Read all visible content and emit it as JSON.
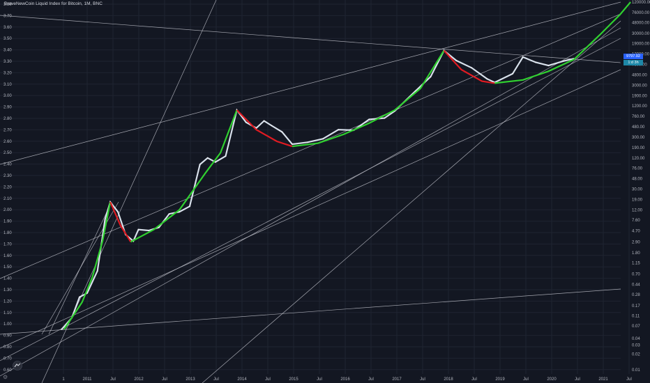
{
  "title": "BraveNewCoin Liquid Index for Bitcoin, 1M, BNC",
  "colors": {
    "background": "#131722",
    "grid": "#1f2431",
    "axis_text": "#b2b5be",
    "trend_line": "#c9cbd3",
    "price_white": "#f4f6f9",
    "price_blue": "#3d8bd4",
    "bull_green": "#30d030",
    "bear_red": "#e01b22",
    "tag_blue": "#2962ff",
    "tag_teal": "#1e88a8"
  },
  "price_tags": [
    "9797.92",
    "1:d 3h"
  ],
  "settings_icon": "gear-icon",
  "logo_icon": "tradingview-logo-icon",
  "chart_data": {
    "type": "line",
    "title": "BraveNewCoin Liquid Index for Bitcoin, 1M, BNC",
    "x_ticks": [
      "1",
      "2011",
      "Jul",
      "2012",
      "Jul",
      "2013",
      "Jul",
      "2014",
      "Jul",
      "2015",
      "Jul",
      "2016",
      "Jul",
      "2017",
      "Jul",
      "2018",
      "Jul",
      "2019",
      "Jul",
      "2020",
      "Jul",
      "2021",
      "Jul"
    ],
    "left_axis_ticks": [
      "3.80",
      "3.70",
      "3.60",
      "3.50",
      "3.40",
      "3.30",
      "3.20",
      "3.10",
      "3.00",
      "2.90",
      "2.80",
      "2.70",
      "2.60",
      "2.50",
      "2.40",
      "2.30",
      "2.20",
      "2.10",
      "2.00",
      "1.90",
      "1.80",
      "1.70",
      "1.60",
      "1.50",
      "1.40",
      "1.30",
      "1.20",
      "1.10",
      "1.00",
      "0.90",
      "0.80",
      "0.70",
      "0.60"
    ],
    "right_axis_ticks": [
      "120000.00",
      "76000.00",
      "48000.00",
      "30000.00",
      "19000.00",
      "12000.00",
      "7600.00",
      "4800.00",
      "3000.00",
      "1900.00",
      "1200.00",
      "760.00",
      "480.00",
      "300.00",
      "190.00",
      "120.00",
      "76.00",
      "48.00",
      "30.00",
      "19.00",
      "12.00",
      "7.60",
      "4.70",
      "2.90",
      "1.80",
      "1.15",
      "0.70",
      "0.44",
      "0.28",
      "0.17",
      "0.11",
      "0.07",
      "0.04",
      "0.03",
      "0.02",
      "0.01"
    ],
    "grid": true,
    "price_series": [
      {
        "t": 2010.5,
        "v": 0.06
      },
      {
        "t": 2010.7,
        "v": 0.1
      },
      {
        "t": 2010.85,
        "v": 0.25
      },
      {
        "t": 2011.0,
        "v": 0.3
      },
      {
        "t": 2011.2,
        "v": 0.8
      },
      {
        "t": 2011.35,
        "v": 8
      },
      {
        "t": 2011.45,
        "v": 17
      },
      {
        "t": 2011.6,
        "v": 11
      },
      {
        "t": 2011.75,
        "v": 4
      },
      {
        "t": 2011.9,
        "v": 3
      },
      {
        "t": 2012.0,
        "v": 5
      },
      {
        "t": 2012.2,
        "v": 4.8
      },
      {
        "t": 2012.4,
        "v": 5.5
      },
      {
        "t": 2012.6,
        "v": 10
      },
      {
        "t": 2012.8,
        "v": 11
      },
      {
        "t": 2013.0,
        "v": 14
      },
      {
        "t": 2013.2,
        "v": 90
      },
      {
        "t": 2013.35,
        "v": 120
      },
      {
        "t": 2013.5,
        "v": 100
      },
      {
        "t": 2013.7,
        "v": 130
      },
      {
        "t": 2013.92,
        "v": 1000
      },
      {
        "t": 2014.1,
        "v": 580
      },
      {
        "t": 2014.3,
        "v": 450
      },
      {
        "t": 2014.45,
        "v": 620
      },
      {
        "t": 2014.6,
        "v": 500
      },
      {
        "t": 2014.8,
        "v": 380
      },
      {
        "t": 2015.0,
        "v": 220
      },
      {
        "t": 2015.3,
        "v": 240
      },
      {
        "t": 2015.6,
        "v": 280
      },
      {
        "t": 2015.9,
        "v": 420
      },
      {
        "t": 2016.2,
        "v": 410
      },
      {
        "t": 2016.5,
        "v": 660
      },
      {
        "t": 2016.8,
        "v": 700
      },
      {
        "t": 2017.0,
        "v": 960
      },
      {
        "t": 2017.4,
        "v": 2300
      },
      {
        "t": 2017.7,
        "v": 4400
      },
      {
        "t": 2017.96,
        "v": 14000
      },
      {
        "t": 2018.2,
        "v": 9000
      },
      {
        "t": 2018.5,
        "v": 6500
      },
      {
        "t": 2018.8,
        "v": 4000
      },
      {
        "t": 2018.95,
        "v": 3400
      },
      {
        "t": 2019.3,
        "v": 5000
      },
      {
        "t": 2019.5,
        "v": 10500
      },
      {
        "t": 2019.75,
        "v": 8300
      },
      {
        "t": 2020.0,
        "v": 7200
      },
      {
        "t": 2020.3,
        "v": 8800
      },
      {
        "t": 2020.5,
        "v": 9797.92
      }
    ],
    "future_curve_end": {
      "t": 2021.6,
      "v": 120000
    }
  }
}
